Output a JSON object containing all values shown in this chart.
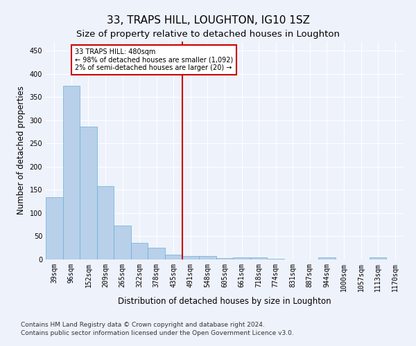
{
  "title": "33, TRAPS HILL, LOUGHTON, IG10 1SZ",
  "subtitle": "Size of property relative to detached houses in Loughton",
  "xlabel": "Distribution of detached houses by size in Loughton",
  "ylabel": "Number of detached properties",
  "categories": [
    "39sqm",
    "96sqm",
    "152sqm",
    "209sqm",
    "265sqm",
    "322sqm",
    "378sqm",
    "435sqm",
    "491sqm",
    "548sqm",
    "605sqm",
    "661sqm",
    "718sqm",
    "774sqm",
    "831sqm",
    "887sqm",
    "944sqm",
    "1000sqm",
    "1057sqm",
    "1113sqm",
    "1170sqm"
  ],
  "values": [
    135,
    375,
    287,
    158,
    73,
    36,
    25,
    10,
    8,
    7,
    3,
    5,
    5,
    2,
    0,
    0,
    4,
    0,
    0,
    4,
    0
  ],
  "bar_color": "#b8d0ea",
  "bar_edge_color": "#6aaed6",
  "background_color": "#eef2fb",
  "grid_color": "#ffffff",
  "property_line_color": "#cc0000",
  "annotation_text": "33 TRAPS HILL: 480sqm\n← 98% of detached houses are smaller (1,092)\n2% of semi-detached houses are larger (20) →",
  "annotation_box_color": "#cc0000",
  "annotation_bg_color": "#ffffff",
  "ylim": [
    0,
    470
  ],
  "yticks": [
    0,
    50,
    100,
    150,
    200,
    250,
    300,
    350,
    400,
    450
  ],
  "footnote1": "Contains HM Land Registry data © Crown copyright and database right 2024.",
  "footnote2": "Contains public sector information licensed under the Open Government Licence v3.0.",
  "title_fontsize": 11,
  "subtitle_fontsize": 9.5,
  "axis_label_fontsize": 8.5,
  "tick_fontsize": 7,
  "annotation_fontsize": 7,
  "footnote_fontsize": 6.5
}
